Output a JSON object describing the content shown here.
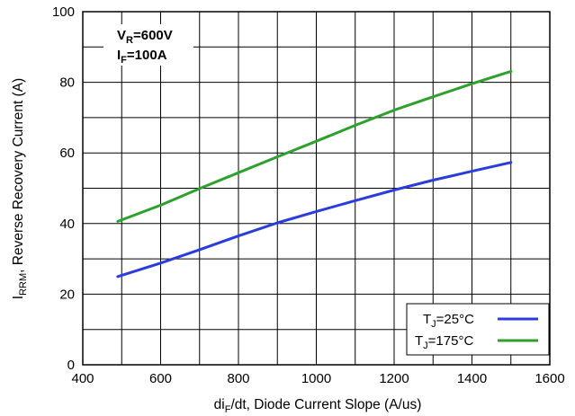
{
  "chart_data": {
    "type": "line",
    "xlabel": {
      "main": "di",
      "sub": "F",
      "rest": "/dt, Diode Current Slope (A/us)"
    },
    "ylabel": {
      "main": "I",
      "sub": "RRM",
      "rest": ", Reverse Recovery Current (A)"
    },
    "xlim": [
      400,
      1600
    ],
    "ylim": [
      0,
      100
    ],
    "xticks": [
      400,
      600,
      800,
      1000,
      1200,
      1400,
      1600
    ],
    "yticks": [
      0,
      20,
      40,
      60,
      80,
      100
    ],
    "grid": true,
    "annotation": [
      {
        "main": "V",
        "sub": "R",
        "rest": "=600V"
      },
      {
        "main": "I",
        "sub": "F",
        "rest": "=100A"
      }
    ],
    "legend_position": "bottom-right",
    "series": [
      {
        "name": {
          "main": "T",
          "sub": "J",
          "rest": "=25°C"
        },
        "color": "#2a3cdc",
        "x": [
          490,
          600,
          700,
          800,
          900,
          1000,
          1100,
          1200,
          1300,
          1400,
          1500
        ],
        "y": [
          25.0,
          28.8,
          32.6,
          36.5,
          40.2,
          43.4,
          46.5,
          49.5,
          52.3,
          54.8,
          57.3
        ]
      },
      {
        "name": {
          "main": "T",
          "sub": "J",
          "rest": "=175°C"
        },
        "color": "#2ea02e",
        "x": [
          490,
          600,
          700,
          800,
          900,
          1000,
          1100,
          1200,
          1300,
          1400,
          1500
        ],
        "y": [
          40.6,
          45.2,
          49.9,
          54.4,
          58.9,
          63.3,
          67.8,
          72.1,
          75.9,
          79.6,
          83.1
        ]
      }
    ]
  }
}
